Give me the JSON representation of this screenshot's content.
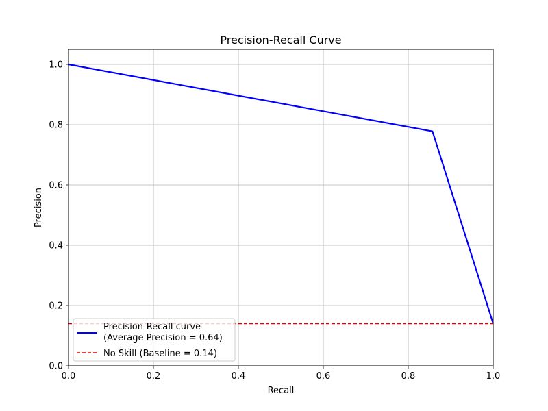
{
  "chart_data": {
    "type": "line",
    "title": "Precision-Recall Curve",
    "xlabel": "Recall",
    "ylabel": "Precision",
    "xlim": [
      0.0,
      1.0
    ],
    "ylim": [
      0.0,
      1.05
    ],
    "x_ticks": [
      "0.0",
      "0.2",
      "0.4",
      "0.6",
      "0.8",
      "1.0"
    ],
    "y_ticks": [
      "0.0",
      "0.2",
      "0.4",
      "0.6",
      "0.8",
      "1.0"
    ],
    "grid": true,
    "legend_position": "lower-left",
    "series": [
      {
        "name": "Precision-Recall curve",
        "name_line2": "(Average Precision = 0.64)",
        "color": "#0000ff",
        "style": "solid",
        "x": [
          0.0,
          0.857,
          1.0
        ],
        "y": [
          1.0,
          0.778,
          0.14
        ]
      },
      {
        "name": "No Skill (Baseline = 0.14)",
        "color": "#dd0000",
        "style": "dashed",
        "x": [
          0.0,
          1.0
        ],
        "y": [
          0.14,
          0.14
        ]
      }
    ]
  }
}
